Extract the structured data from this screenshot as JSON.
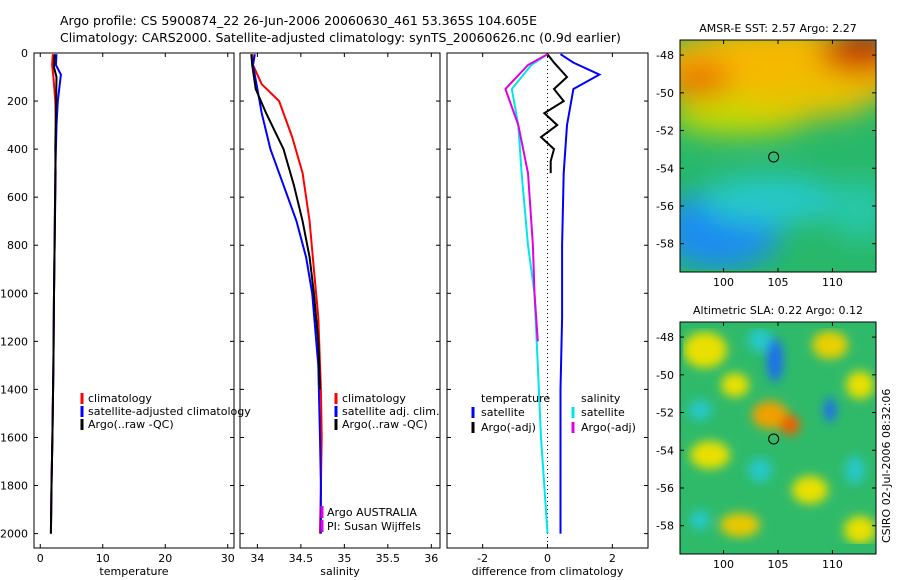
{
  "header": {
    "line1": "Argo profile: CS 5900874_22 26-Jun-2006 20060630_461 53.365S 104.605E",
    "line2": "Climatology: CARS2000. Satellite-adjusted climatology: synTS_20060626.nc (0.9d earlier)"
  },
  "side_label": "CSIRO 02-Jul-2006 08:32:06",
  "colors": {
    "red": "#ff0000",
    "blue": "#0000ff",
    "black": "#000000",
    "cyan": "#00e5ee",
    "magenta": "#e000e0"
  },
  "chart_data": [
    {
      "type": "line",
      "id": "temperature",
      "xlabel": "temperature",
      "xlim": [
        -1,
        31
      ],
      "ylim": [
        2060,
        0
      ],
      "xticks": [
        0,
        10,
        20,
        30
      ],
      "yticks": [
        0,
        200,
        400,
        600,
        800,
        1000,
        1200,
        1400,
        1600,
        1800,
        2000
      ],
      "series": [
        {
          "name": "climatology",
          "color": "red",
          "x": [
            2.0,
            1.9,
            2.1,
            2.4,
            2.5,
            2.4,
            2.3,
            2.2,
            2.1,
            1.95,
            1.8,
            1.7
          ],
          "y": [
            5,
            50,
            100,
            200,
            300,
            500,
            800,
            1000,
            1300,
            1600,
            1800,
            2000
          ]
        },
        {
          "name": "satellite-adjusted climatology",
          "color": "blue",
          "x": [
            2.6,
            2.5,
            3.3,
            2.8,
            2.6,
            2.4,
            2.3,
            2.2,
            2.1,
            1.95,
            1.8,
            1.7
          ],
          "y": [
            5,
            50,
            90,
            200,
            300,
            500,
            800,
            1000,
            1300,
            1600,
            1800,
            2000
          ]
        },
        {
          "name": "Argo(..raw -QC)",
          "color": "black",
          "x": [
            2.3,
            2.2,
            2.6,
            2.5,
            2.4,
            2.45,
            2.3,
            2.2,
            2.1,
            1.95,
            1.8,
            1.7
          ],
          "y": [
            5,
            60,
            100,
            250,
            400,
            500,
            800,
            1000,
            1300,
            1600,
            1800,
            2000
          ]
        }
      ],
      "legend": [
        "climatology",
        "satellite-adjusted climatology",
        "Argo(..raw -QC)"
      ]
    },
    {
      "type": "line",
      "id": "salinity",
      "xlabel": "salinity",
      "xlim": [
        33.8,
        36.1
      ],
      "ylim": [
        2060,
        0
      ],
      "xticks": [
        34,
        34.5,
        35,
        35.5,
        36
      ],
      "series": [
        {
          "name": "climatology",
          "color": "red",
          "x": [
            33.94,
            33.95,
            34.05,
            34.25,
            34.4,
            34.52,
            34.6,
            34.65,
            34.7,
            34.73,
            34.74,
            34.73,
            34.72
          ],
          "y": [
            5,
            50,
            130,
            200,
            350,
            500,
            700,
            900,
            1100,
            1400,
            1600,
            1800,
            2000
          ]
        },
        {
          "name": "satellite adj. clim.",
          "color": "blue",
          "x": [
            33.97,
            33.95,
            34.0,
            34.05,
            34.15,
            34.3,
            34.45,
            34.56,
            34.63,
            34.7,
            34.72,
            34.73,
            34.73
          ],
          "y": [
            5,
            50,
            150,
            250,
            400,
            550,
            700,
            850,
            1000,
            1300,
            1600,
            1800,
            2000
          ]
        },
        {
          "name": "Argo(..raw -QC)",
          "color": "black",
          "x": [
            33.93,
            33.94,
            33.98,
            34.1,
            34.3,
            34.42,
            34.52,
            34.6,
            34.65,
            34.7,
            34.72
          ],
          "y": [
            5,
            50,
            150,
            250,
            400,
            550,
            700,
            850,
            1000,
            1200,
            1400
          ]
        }
      ],
      "legend": [
        "climatology",
        "satellite adj. clim.",
        "Argo(..raw -QC)"
      ],
      "notes": [
        "Argo AUSTRALIA",
        "PI: Susan Wijffels"
      ]
    },
    {
      "type": "line",
      "id": "difference",
      "xlabel": "difference from climatology",
      "xlim": [
        -3.1,
        3.1
      ],
      "ylim": [
        2060,
        0
      ],
      "xticks": [
        -2,
        0,
        2
      ],
      "series": [
        {
          "name": "temperature satellite",
          "color": "blue",
          "x": [
            0.4,
            0.8,
            1.6,
            0.8,
            0.6,
            0.5,
            0.45,
            0.45,
            0.4,
            0.4,
            0.4
          ],
          "y": [
            5,
            40,
            90,
            150,
            300,
            500,
            800,
            1100,
            1400,
            1700,
            2000
          ]
        },
        {
          "name": "temperature Argo(-adj)",
          "color": "black",
          "x": [
            0.0,
            0.2,
            0.6,
            0.2,
            0.5,
            -0.1,
            0.3,
            -0.2,
            0.2,
            0.1,
            0.1
          ],
          "y": [
            5,
            40,
            100,
            150,
            200,
            250,
            300,
            350,
            400,
            450,
            500
          ]
        },
        {
          "name": "salinity satellite",
          "color": "cyan",
          "x": [
            0.0,
            -0.5,
            -1.1,
            -0.9,
            -0.8,
            -0.6,
            -0.4,
            -0.3,
            -0.2,
            -0.1,
            0.0
          ],
          "y": [
            5,
            50,
            150,
            300,
            500,
            800,
            1000,
            1300,
            1600,
            1800,
            2000
          ]
        },
        {
          "name": "salinity Argo(-adj)",
          "color": "magenta",
          "x": [
            0.0,
            -0.6,
            -1.3,
            -0.9,
            -0.6,
            -0.45,
            -0.4,
            -0.3
          ],
          "y": [
            5,
            50,
            150,
            300,
            500,
            800,
            1000,
            1200
          ]
        }
      ],
      "legend_groups": [
        {
          "title": "temperature",
          "items": [
            {
              "label": "satellite",
              "color": "blue"
            },
            {
              "label": "Argo(-adj)",
              "color": "black"
            }
          ]
        },
        {
          "title": "salinity",
          "items": [
            {
              "label": "satellite",
              "color": "cyan"
            },
            {
              "label": "Argo(-adj)",
              "color": "magenta"
            }
          ]
        }
      ]
    },
    {
      "type": "heatmap",
      "id": "sst_map",
      "title": "AMSR-E SST: 2.57 Argo: 2.27",
      "xlim": [
        96,
        114
      ],
      "ylim": [
        -59.5,
        -47.2
      ],
      "xticks": [
        100,
        105,
        110
      ],
      "yticks": [
        -48,
        -50,
        -52,
        -54,
        -56,
        -58
      ],
      "marker": {
        "lon": 104.6,
        "lat": -53.4
      }
    },
    {
      "type": "heatmap",
      "id": "sla_map",
      "title": "Altimetric SLA: 0.22 Argo: 0.12",
      "xlim": [
        96,
        114
      ],
      "ylim": [
        -59.5,
        -47.2
      ],
      "xticks": [
        100,
        105,
        110
      ],
      "yticks": [
        -48,
        -50,
        -52,
        -54,
        -56,
        -58
      ],
      "marker": {
        "lon": 104.6,
        "lat": -53.4
      }
    }
  ]
}
